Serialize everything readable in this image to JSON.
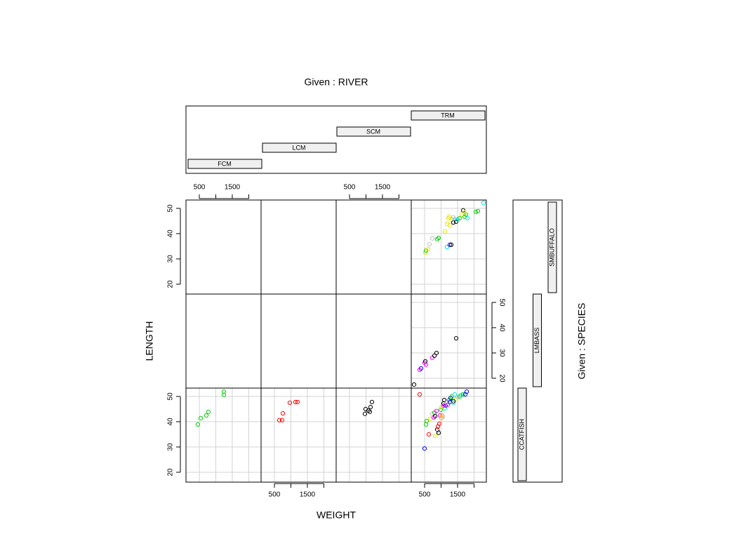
{
  "chart_data": {
    "type": "coplot",
    "x_label": "WEIGHT",
    "y_label": "LENGTH",
    "given": [
      {
        "label": "Given : RIVER",
        "levels": [
          "FCM",
          "LCM",
          "SCM",
          "TRM"
        ]
      },
      {
        "label": "Given : SPECIES",
        "levels": [
          "CCATFISH",
          "LMBASS",
          "SMBUFFALO"
        ]
      }
    ],
    "xlim": [
      96,
      2373
    ],
    "ylim": [
      16.1,
      53.3
    ],
    "xticks": [
      500,
      1500
    ],
    "xminor_ticks": [
      1000,
      2000
    ],
    "yticks": [
      20,
      30,
      40,
      50
    ],
    "grid": true,
    "panels": [
      [
        {
          "x": [
            458,
            543,
            713,
            777,
            1245,
            1245
          ],
          "y": [
            38.9,
            41.4,
            42.5,
            43.9,
            51.9,
            50.6
          ],
          "colors": [
            "#00cd00",
            "#00cd00",
            "#00cd00",
            "#00cd00",
            "#00cd00",
            "#00cd00"
          ]
        },
        {
          "x": [
            649,
            734,
            756,
            968,
            1138,
            1202
          ],
          "y": [
            40.6,
            40.6,
            43.3,
            47.5,
            47.8,
            47.8
          ],
          "colors": [
            "#ff0000",
            "#ff0000",
            "#ff0000",
            "#ff0000",
            "#ff0000",
            "#ff0000"
          ]
        },
        {
          "x": [
            968,
            990,
            1075,
            1138,
            1181,
            1117
          ],
          "y": [
            43.1,
            45,
            44.4,
            45.8,
            47.8,
            43.9
          ],
          "colors": [
            "#000000",
            "#000000",
            "#000000",
            "#000000",
            "#000000",
            "#000000"
          ]
        },
        {
          "x": [
            351,
            500,
            543,
            564,
            628,
            671,
            734,
            777,
            798,
            820,
            862,
            883,
            905,
            905,
            926,
            947,
            968,
            990,
            1011,
            1032,
            1075,
            1096,
            1117,
            1139,
            1181,
            1203,
            1245,
            1266,
            1288,
            1330,
            1373,
            1415,
            1458,
            1500,
            1564,
            1607,
            1671,
            1735,
            1777,
            1011,
            1054,
            820,
            1373,
            1075
          ],
          "y": [
            50.8,
            29.4,
            38.9,
            40.3,
            35,
            41.1,
            43.1,
            41.7,
            43.6,
            42.2,
            44.2,
            36.9,
            36.4,
            38.1,
            35.6,
            39.2,
            42.5,
            44.7,
            45.8,
            42.5,
            47.2,
            48.6,
            45.3,
            46.4,
            47.5,
            46.7,
            48.6,
            47.8,
            49.4,
            50,
            47.5,
            50.8,
            48.9,
            49.7,
            50,
            50.6,
            50.8,
            50.8,
            51.9,
            41.4,
            41.9,
            34.4,
            48.1,
            46.4
          ],
          "colors": [
            "#ff0000",
            "#0000ff",
            "#00cd00",
            "#00cd00",
            "#ff0000",
            "#e5e500",
            "#bebebe",
            "#ff00ff",
            "#00cd00",
            "#000000",
            "#ff00ff",
            "#000000",
            "#bebebe",
            "#ff0000",
            "#000000",
            "#ff0000",
            "#ff00ff",
            "#00cd00",
            "#e5e500",
            "#ffa500",
            "#000000",
            "#000000",
            "#00e5e5",
            "#0000ff",
            "#bebebe",
            "#ff00ff",
            "#00cd00",
            "#0000ff",
            "#0000ff",
            "#00cd00",
            "#00e5e5",
            "#00e5e5",
            "#e5e500",
            "#bebebe",
            "#00cd00",
            "#00e5e5",
            "#00cd00",
            "#0000ff",
            "#0000ff",
            "#ffa500",
            "#bebebe",
            "#e5e500",
            "#000000",
            "#ff00ff"
          ]
        }
      ],
      [
        {
          "x": [],
          "y": [],
          "colors": []
        },
        {
          "x": [],
          "y": [],
          "colors": []
        },
        {
          "x": [],
          "y": [],
          "colors": []
        },
        {
          "x": [
            181,
            351,
            394,
            500,
            522,
            543,
            734,
            798,
            862,
            1458
          ],
          "y": [
            17.5,
            23.3,
            23.9,
            26.1,
            26.7,
            25.3,
            28.1,
            28.9,
            30,
            35.8
          ],
          "colors": [
            "#000000",
            "#ff00ff",
            "#0000ff",
            "#ff00ff",
            "#000000",
            "#ff00ff",
            "#ff00ff",
            "#000000",
            "#000000",
            "#000000"
          ]
        }
      ],
      [
        {
          "x": [],
          "y": [],
          "colors": []
        },
        {
          "x": [],
          "y": [],
          "colors": []
        },
        {
          "x": [],
          "y": [],
          "colors": []
        },
        {
          "x": [
            522,
            543,
            607,
            649,
            734,
            883,
            926,
            1181,
            1266,
            1309,
            1117,
            1181,
            1224,
            1266,
            1330,
            1373,
            1415,
            1458,
            1500,
            1564,
            1628,
            1671,
            1713,
            1756,
            1799,
            2053,
            2118,
            2288,
            1713,
            1245,
            1373
          ],
          "y": [
            32.5,
            33.3,
            33.9,
            35.8,
            38.1,
            37.8,
            38.3,
            34.7,
            35.6,
            35.6,
            40.8,
            43.9,
            46.1,
            43.3,
            45.6,
            44.4,
            45.6,
            44.7,
            45.6,
            46.1,
            47.5,
            49.2,
            46.7,
            47.5,
            46.1,
            48.6,
            48.9,
            52.2,
            48.3,
            46.7,
            46.4
          ],
          "colors": [
            "#e5e500",
            "#00cd00",
            "#e5e500",
            "#bebebe",
            "#bebebe",
            "#00cd00",
            "#00cd00",
            "#00e5e5",
            "#0000ff",
            "#000000",
            "#e5e500",
            "#e5e500",
            "#e5e500",
            "#e5e500",
            "#e5e500",
            "#000000",
            "#00e5e5",
            "#000000",
            "#00e5e5",
            "#00cd00",
            "#e5e500",
            "#000000",
            "#00cd00",
            "#00cd00",
            "#00e5e5",
            "#00cd00",
            "#00cd00",
            "#00e5e5",
            "#e5e500",
            "#e5e500",
            "#bebebe"
          ]
        }
      ]
    ]
  }
}
